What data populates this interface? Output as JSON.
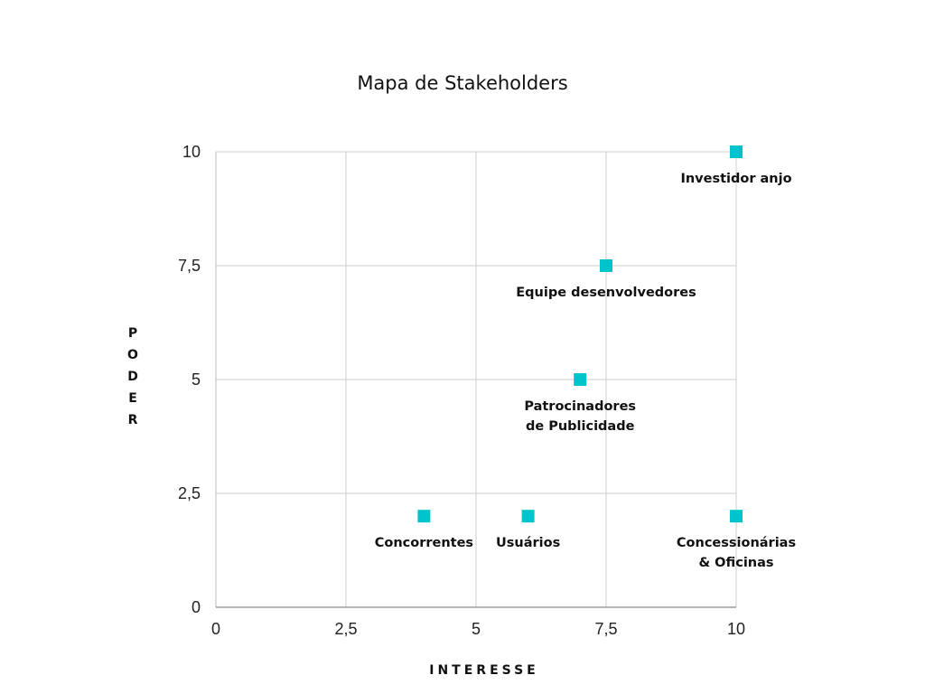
{
  "chart_data": {
    "type": "scatter",
    "title": "Mapa de Stakeholders",
    "xlabel": "INTERESSE",
    "ylabel": "PODER",
    "xlim": [
      0,
      10
    ],
    "ylim": [
      0,
      10
    ],
    "x_ticks": [
      0,
      2.5,
      5,
      7.5,
      10
    ],
    "y_ticks": [
      0,
      2.5,
      5,
      7.5,
      10
    ],
    "x_tick_labels": [
      "0",
      "2,5",
      "5",
      "7,5",
      "10"
    ],
    "y_tick_labels": [
      "0",
      "2,5",
      "5",
      "7,5",
      "10"
    ],
    "grid": true,
    "marker": "square",
    "color": "#00C4CC",
    "points": [
      {
        "label": [
          "Investidor anjo"
        ],
        "x": 10,
        "y": 10
      },
      {
        "label": [
          "Equipe desenvolvedores"
        ],
        "x": 7.5,
        "y": 7.5
      },
      {
        "label": [
          "Patrocinadores",
          "de Publicidade"
        ],
        "x": 7,
        "y": 5
      },
      {
        "label": [
          "Concorrentes"
        ],
        "x": 4,
        "y": 2
      },
      {
        "label": [
          "Usuários"
        ],
        "x": 6,
        "y": 2
      },
      {
        "label": [
          "Concessionárias",
          "& Oficinas"
        ],
        "x": 10,
        "y": 2
      }
    ]
  }
}
